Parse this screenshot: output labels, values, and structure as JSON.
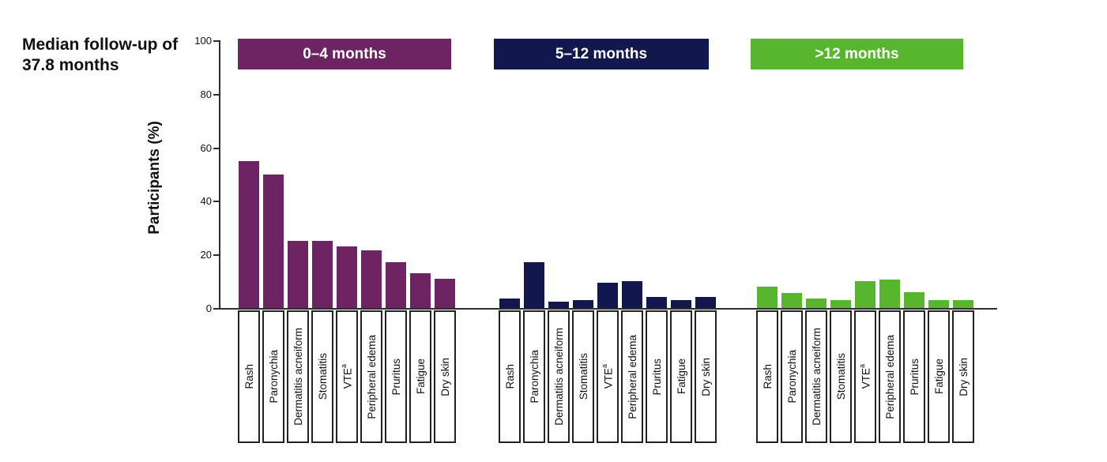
{
  "title": "Median follow-up of 37.8 months",
  "chart_data": {
    "type": "bar",
    "title": "Median follow-up of 37.8 months",
    "ylabel": "Participants (%)",
    "xlabel": "",
    "ylim": [
      0,
      100
    ],
    "yticks": [
      0,
      20,
      40,
      60,
      80,
      100
    ],
    "grid": false,
    "legend_position": "top-banners",
    "categories": [
      "Rash",
      "Paronychia",
      "Dermatitis acneiform",
      "Stomatitis",
      "VTE^a",
      "Peripheral edema",
      "Pruritus",
      "Fatigue",
      "Dry skin"
    ],
    "series": [
      {
        "name": "0–4 months",
        "color": "#6C2462",
        "values": [
          55,
          50,
          25,
          25,
          23,
          21.5,
          17,
          13,
          11
        ]
      },
      {
        "name": "5–12 months",
        "color": "#12174D",
        "values": [
          3.5,
          17,
          2.5,
          3,
          9.5,
          10,
          4,
          3,
          4
        ]
      },
      {
        "name": ">12 months",
        "color": "#58B52E",
        "values": [
          8,
          5.5,
          3.5,
          3,
          10,
          10.5,
          6,
          3,
          3
        ]
      }
    ]
  }
}
